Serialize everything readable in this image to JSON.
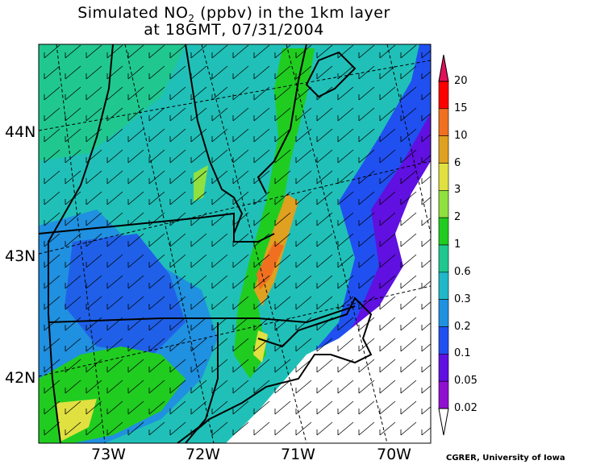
{
  "title": {
    "line1_prefix": "Simulated NO",
    "line1_sub": "2",
    "line1_suffix": " (ppbv) in the 1km layer",
    "line2": "at 18GMT, 07/31/2004"
  },
  "latitude_labels": [
    "44N",
    "43N",
    "42N"
  ],
  "longitude_labels": [
    "73W",
    "72W",
    "71W",
    "70W"
  ],
  "colorbar": {
    "labels": [
      "20",
      "15",
      "10",
      "6",
      "3",
      "2",
      "1",
      "0.6",
      "0.3",
      "0.2",
      "0.1",
      "0.05",
      "0.02"
    ],
    "colors": [
      "#ff0000",
      "#f07020",
      "#e0a020",
      "#e0e040",
      "#90e040",
      "#20cc20",
      "#20c890",
      "#20b8c8",
      "#2090e0",
      "#2050f0",
      "#6010e0",
      "#9010d0"
    ],
    "top_arrow_color": "#e0105a"
  },
  "credit": "CGRER, University of Iowa"
}
